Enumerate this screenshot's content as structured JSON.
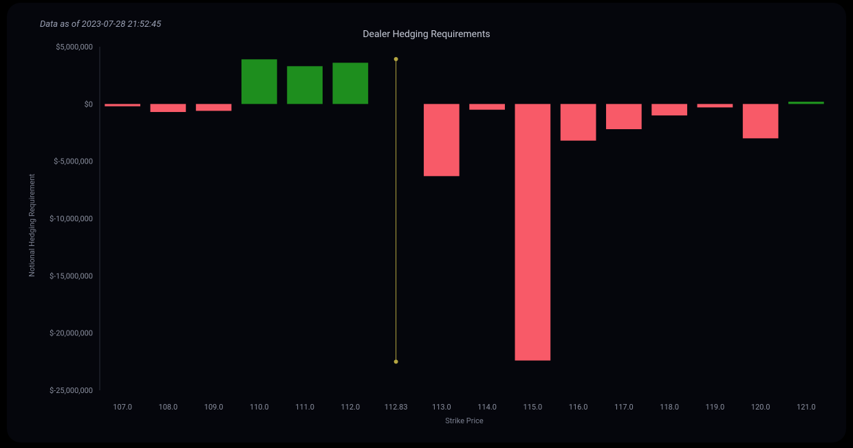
{
  "timestamp": "Data as of 2023-07-28 21:52:45",
  "chart": {
    "type": "bar",
    "title": "Dealer Hedging Requirements",
    "xlabel": "Strike Price",
    "ylabel": "Notional Hedging Requirement",
    "background_color": "#05060c",
    "grid_color": "#1a1d2a",
    "tick_color": "#8a8f9f",
    "bar_positive_color": "#1e8e1e",
    "bar_negative_color": "#f85a68",
    "marker_color": "#b5a642",
    "ylim": [
      -25000000,
      5000000
    ],
    "ytick_step": 5000000,
    "yticks": [
      {
        "v": 5000000,
        "label": "$5,000,000"
      },
      {
        "v": 0,
        "label": "$0"
      },
      {
        "v": -5000000,
        "label": "$-5,000,000"
      },
      {
        "v": -10000000,
        "label": "$-10,000,000"
      },
      {
        "v": -15000000,
        "label": "$-15,000,000"
      },
      {
        "v": -20000000,
        "label": "$-20,000,000"
      },
      {
        "v": -25000000,
        "label": "$-25,000,000"
      }
    ],
    "xticks": [
      "107.0",
      "108.0",
      "109.0",
      "110.0",
      "111.0",
      "112.0",
      "112.83",
      "113.0",
      "114.0",
      "115.0",
      "116.0",
      "117.0",
      "118.0",
      "119.0",
      "120.0",
      "121.0"
    ],
    "marker_index": 6,
    "bars": [
      {
        "x": "107.0",
        "v": -200000
      },
      {
        "x": "108.0",
        "v": -700000
      },
      {
        "x": "109.0",
        "v": -600000
      },
      {
        "x": "110.0",
        "v": 3900000
      },
      {
        "x": "111.0",
        "v": 3300000
      },
      {
        "x": "112.0",
        "v": 3600000
      },
      {
        "x": "113.0",
        "v": -6300000
      },
      {
        "x": "114.0",
        "v": -500000
      },
      {
        "x": "115.0",
        "v": -22400000
      },
      {
        "x": "116.0",
        "v": -3200000
      },
      {
        "x": "117.0",
        "v": -2200000
      },
      {
        "x": "118.0",
        "v": -1000000
      },
      {
        "x": "119.0",
        "v": -300000
      },
      {
        "x": "120.0",
        "v": -3000000
      },
      {
        "x": "121.0",
        "v": 200000
      }
    ],
    "bar_width_ratio": 0.78,
    "title_fontsize": 14,
    "tick_fontsize": 11
  }
}
